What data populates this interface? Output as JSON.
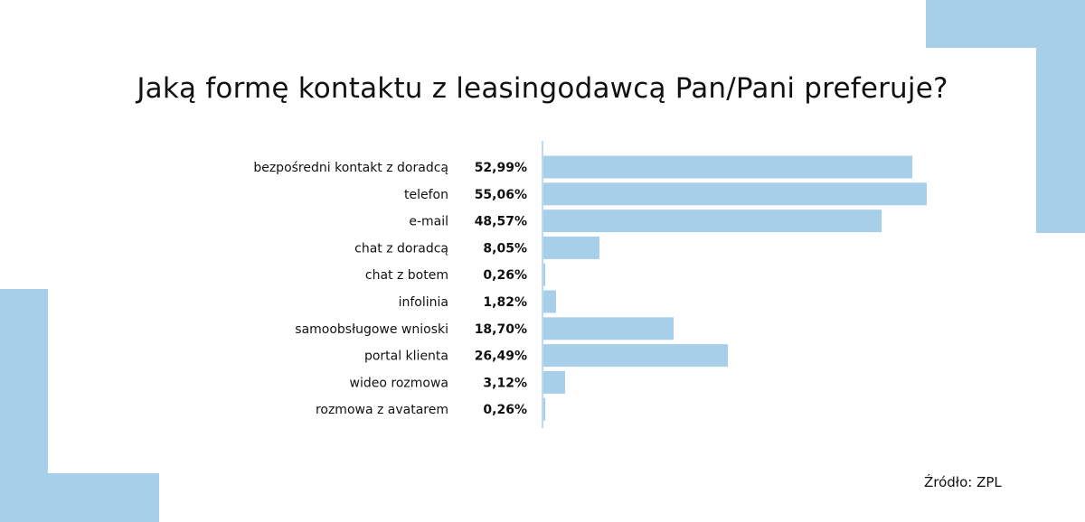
{
  "chart_data": {
    "type": "bar",
    "orientation": "horizontal",
    "title": "Jaką formę kontaktu z leasingodawcą Pan/Pani preferuje?",
    "categories": [
      "bezpośredni kontakt z doradcą",
      "telefon",
      "e-mail",
      "chat z doradcą",
      "chat z botem",
      "infolinia",
      "samoobsługowe wnioski",
      "portal klienta",
      "wideo rozmowa",
      "rozmowa z avatarem"
    ],
    "values": [
      52.99,
      55.06,
      48.57,
      8.05,
      0.26,
      1.82,
      18.7,
      26.49,
      3.12,
      0.26
    ],
    "value_labels": [
      "52,99%",
      "55,06%",
      "48,57%",
      "8,05%",
      "0,26%",
      "1,82%",
      "18,70%",
      "26,49%",
      "3,12%",
      "0,26%"
    ],
    "xlim": [
      0,
      55.06
    ],
    "grid": false,
    "legend": "none"
  },
  "source": "Źródło: ZPL",
  "colors": {
    "bar": "#a7cfe9",
    "decoration": "#a7cfe9",
    "axis": "#a7cfe9",
    "text": "#111111"
  }
}
